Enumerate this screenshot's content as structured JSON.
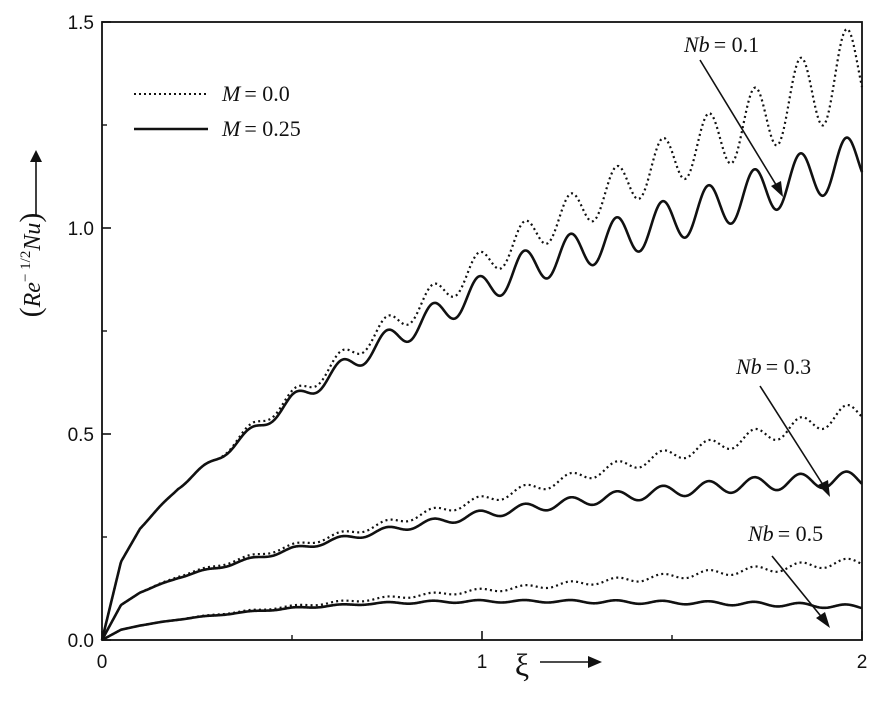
{
  "chart_data": {
    "type": "line",
    "title": "",
    "xlabel": "ξ",
    "ylabel": "(Re^-1/2 Nu)",
    "ylabel_parts": {
      "open": "(",
      "base": "Re",
      "sup": "− 1/2",
      "rest": "Nu",
      "close": ")"
    },
    "xlim": [
      0,
      2
    ],
    "ylim": [
      0,
      1.5
    ],
    "x_ticks": [
      0,
      1,
      2
    ],
    "x_tick_labels": [
      "0",
      "1",
      "2"
    ],
    "y_ticks": [
      0,
      0.5,
      1.0,
      1.5
    ],
    "y_tick_labels": [
      "0.0",
      "0.5",
      "1.0",
      "1.5"
    ],
    "grid": false,
    "legend_position": "top-left",
    "legend": [
      {
        "label_var": "M",
        "label_value": "= 0.0",
        "style": "dotted"
      },
      {
        "label_var": "M",
        "label_value": "= 0.25",
        "style": "solid"
      }
    ],
    "annotations": [
      {
        "var": "Nb",
        "value": "= 0.1"
      },
      {
        "var": "Nb",
        "value": "= 0.3"
      },
      {
        "var": "Nb",
        "value": "= 0.5"
      }
    ],
    "series": [
      {
        "name": "M = 0.0, Nb = 0.1",
        "style": "dotted",
        "x": [
          0,
          0.05,
          0.1,
          0.2,
          0.3,
          0.4,
          0.5,
          0.6,
          0.7,
          0.8,
          0.9,
          1.0,
          1.1,
          1.2,
          1.3,
          1.4,
          1.5,
          1.6,
          1.7,
          1.8,
          1.9,
          2.0
        ],
        "y": [
          0,
          0.19,
          0.27,
          0.37,
          0.44,
          0.52,
          0.59,
          0.66,
          0.73,
          0.79,
          0.85,
          0.91,
          0.97,
          1.02,
          1.07,
          1.12,
          1.17,
          1.21,
          1.25,
          1.3,
          1.35,
          1.4
        ],
        "osc_amp": [
          0,
          0,
          0,
          0.004,
          0.008,
          0.012,
          0.016,
          0.02,
          0.024,
          0.028,
          0.032,
          0.036,
          0.04,
          0.045,
          0.05,
          0.055,
          0.062,
          0.07,
          0.08,
          0.09,
          0.1,
          0.105
        ]
      },
      {
        "name": "M = 0.25, Nb = 0.1",
        "style": "solid",
        "x": [
          0,
          0.05,
          0.1,
          0.2,
          0.3,
          0.4,
          0.5,
          0.6,
          0.7,
          0.8,
          0.9,
          1.0,
          1.1,
          1.2,
          1.3,
          1.4,
          1.5,
          1.6,
          1.7,
          1.8,
          1.9,
          2.0
        ],
        "y": [
          0,
          0.19,
          0.27,
          0.37,
          0.44,
          0.51,
          0.58,
          0.64,
          0.7,
          0.75,
          0.8,
          0.85,
          0.9,
          0.93,
          0.96,
          0.99,
          1.02,
          1.05,
          1.08,
          1.11,
          1.14,
          1.17
        ],
        "osc_amp": [
          0,
          0,
          0,
          0.004,
          0.008,
          0.012,
          0.016,
          0.02,
          0.025,
          0.029,
          0.033,
          0.037,
          0.041,
          0.045,
          0.048,
          0.051,
          0.053,
          0.055,
          0.057,
          0.059,
          0.061,
          0.062
        ]
      },
      {
        "name": "M = 0.0, Nb = 0.3",
        "style": "dotted",
        "x": [
          0,
          0.05,
          0.1,
          0.2,
          0.3,
          0.4,
          0.5,
          0.6,
          0.7,
          0.8,
          0.9,
          1.0,
          1.1,
          1.2,
          1.3,
          1.4,
          1.5,
          1.6,
          1.7,
          1.8,
          1.9,
          2.0
        ],
        "y": [
          0,
          0.085,
          0.115,
          0.155,
          0.18,
          0.205,
          0.228,
          0.25,
          0.272,
          0.295,
          0.318,
          0.34,
          0.362,
          0.385,
          0.408,
          0.43,
          0.45,
          0.47,
          0.49,
          0.51,
          0.535,
          0.555
        ],
        "osc_amp": [
          0,
          0,
          0,
          0.002,
          0.003,
          0.004,
          0.005,
          0.006,
          0.007,
          0.008,
          0.009,
          0.01,
          0.011,
          0.012,
          0.013,
          0.014,
          0.015,
          0.016,
          0.018,
          0.02,
          0.022,
          0.024
        ]
      },
      {
        "name": "M = 0.25, Nb = 0.3",
        "style": "solid",
        "x": [
          0,
          0.05,
          0.1,
          0.2,
          0.3,
          0.4,
          0.5,
          0.6,
          0.7,
          0.8,
          0.9,
          1.0,
          1.1,
          1.2,
          1.3,
          1.4,
          1.5,
          1.6,
          1.7,
          1.8,
          1.9,
          2.0
        ],
        "y": [
          0,
          0.085,
          0.115,
          0.152,
          0.175,
          0.198,
          0.22,
          0.24,
          0.258,
          0.275,
          0.29,
          0.305,
          0.318,
          0.33,
          0.342,
          0.352,
          0.362,
          0.37,
          0.377,
          0.383,
          0.388,
          0.39
        ],
        "osc_amp": [
          0,
          0,
          0,
          0.002,
          0.003,
          0.004,
          0.005,
          0.006,
          0.007,
          0.008,
          0.009,
          0.01,
          0.011,
          0.012,
          0.013,
          0.014,
          0.015,
          0.016,
          0.017,
          0.018,
          0.019,
          0.02
        ]
      },
      {
        "name": "M = 0.0, Nb = 0.5",
        "style": "dotted",
        "x": [
          0,
          0.05,
          0.1,
          0.2,
          0.3,
          0.4,
          0.5,
          0.6,
          0.7,
          0.8,
          0.9,
          1.0,
          1.1,
          1.2,
          1.3,
          1.4,
          1.5,
          1.6,
          1.7,
          1.8,
          1.9,
          2.0
        ],
        "y": [
          0,
          0.025,
          0.035,
          0.05,
          0.062,
          0.072,
          0.082,
          0.09,
          0.098,
          0.106,
          0.113,
          0.12,
          0.127,
          0.134,
          0.141,
          0.148,
          0.155,
          0.162,
          0.169,
          0.176,
          0.184,
          0.19
        ],
        "osc_amp": [
          0,
          0,
          0,
          0.001,
          0.001,
          0.002,
          0.002,
          0.003,
          0.003,
          0.004,
          0.004,
          0.005,
          0.005,
          0.006,
          0.006,
          0.007,
          0.007,
          0.008,
          0.008,
          0.009,
          0.009,
          0.01
        ]
      },
      {
        "name": "M = 0.25, Nb = 0.5",
        "style": "solid",
        "x": [
          0,
          0.05,
          0.1,
          0.2,
          0.3,
          0.4,
          0.5,
          0.6,
          0.7,
          0.8,
          0.9,
          1.0,
          1.1,
          1.2,
          1.3,
          1.4,
          1.5,
          1.6,
          1.7,
          1.8,
          1.9,
          2.0
        ],
        "y": [
          0,
          0.025,
          0.035,
          0.05,
          0.06,
          0.07,
          0.077,
          0.083,
          0.088,
          0.091,
          0.093,
          0.094,
          0.094,
          0.094,
          0.093,
          0.092,
          0.091,
          0.09,
          0.088,
          0.086,
          0.083,
          0.08
        ],
        "osc_amp": [
          0,
          0,
          0,
          0.001,
          0.001,
          0.001,
          0.002,
          0.002,
          0.002,
          0.003,
          0.003,
          0.003,
          0.003,
          0.003,
          0.004,
          0.004,
          0.004,
          0.004,
          0.005,
          0.005,
          0.005,
          0.005
        ]
      }
    ]
  }
}
